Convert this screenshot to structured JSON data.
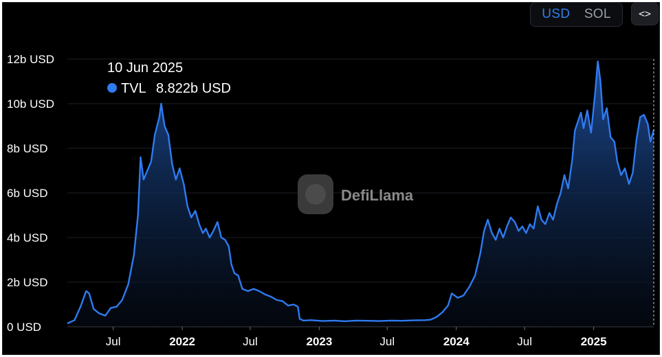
{
  "toolbar": {
    "usd_label": "USD",
    "sol_label": "SOL",
    "embed_label": "<>"
  },
  "watermark": {
    "text": "DefiLlama"
  },
  "tooltip": {
    "date": "10 Jun 2025",
    "series": "TVL",
    "value": "8.822b USD"
  },
  "colors": {
    "line": "#2f7bf0",
    "background": "#000000",
    "grid": "#1e2026",
    "tooltip_dot": "#2f7bf0"
  },
  "chart_data": {
    "type": "area",
    "y_tick_labels": [
      "0 USD",
      "2b USD",
      "4b USD",
      "6b USD",
      "8b USD",
      "10b USD",
      "12b USD"
    ],
    "y_ticks": [
      0,
      2,
      4,
      6,
      8,
      10,
      12
    ],
    "ylim": [
      0,
      12
    ],
    "y_unit": "billion USD",
    "x_ticks": [
      {
        "label": "Jul",
        "date": "2021-07-01",
        "bold": false
      },
      {
        "label": "2022",
        "date": "2022-01-01",
        "bold": true
      },
      {
        "label": "Jul",
        "date": "2022-07-01",
        "bold": false
      },
      {
        "label": "2023",
        "date": "2023-01-01",
        "bold": true
      },
      {
        "label": "Jul",
        "date": "2023-07-01",
        "bold": false
      },
      {
        "label": "2024",
        "date": "2024-01-01",
        "bold": true
      },
      {
        "label": "Jul",
        "date": "2024-07-01",
        "bold": false
      },
      {
        "label": "2025",
        "date": "2025-01-01",
        "bold": true
      }
    ],
    "xlim": [
      "2021-03-01",
      "2025-06-10"
    ],
    "grid": true,
    "series": [
      {
        "name": "TVL",
        "points": [
          [
            "2021-03-01",
            0.15
          ],
          [
            "2021-03-20",
            0.3
          ],
          [
            "2021-04-05",
            0.9
          ],
          [
            "2021-04-20",
            1.6
          ],
          [
            "2021-04-28",
            1.5
          ],
          [
            "2021-05-10",
            0.8
          ],
          [
            "2021-05-25",
            0.6
          ],
          [
            "2021-06-10",
            0.5
          ],
          [
            "2021-06-25",
            0.85
          ],
          [
            "2021-07-10",
            0.9
          ],
          [
            "2021-07-25",
            1.2
          ],
          [
            "2021-08-10",
            1.9
          ],
          [
            "2021-08-25",
            3.2
          ],
          [
            "2021-09-05",
            5.0
          ],
          [
            "2021-09-12",
            7.6
          ],
          [
            "2021-09-20",
            6.6
          ],
          [
            "2021-09-30",
            7.0
          ],
          [
            "2021-10-10",
            7.4
          ],
          [
            "2021-10-20",
            8.6
          ],
          [
            "2021-11-01",
            9.4
          ],
          [
            "2021-11-06",
            10.0
          ],
          [
            "2021-11-15",
            9.0
          ],
          [
            "2021-11-25",
            8.6
          ],
          [
            "2021-12-05",
            7.3
          ],
          [
            "2021-12-15",
            6.6
          ],
          [
            "2021-12-25",
            7.1
          ],
          [
            "2022-01-05",
            6.4
          ],
          [
            "2022-01-15",
            5.4
          ],
          [
            "2022-01-25",
            4.9
          ],
          [
            "2022-02-05",
            5.2
          ],
          [
            "2022-02-15",
            4.6
          ],
          [
            "2022-02-25",
            4.2
          ],
          [
            "2022-03-05",
            4.4
          ],
          [
            "2022-03-15",
            4.0
          ],
          [
            "2022-03-25",
            4.3
          ],
          [
            "2022-04-05",
            4.7
          ],
          [
            "2022-04-15",
            4.0
          ],
          [
            "2022-04-25",
            3.9
          ],
          [
            "2022-05-05",
            3.6
          ],
          [
            "2022-05-12",
            2.8
          ],
          [
            "2022-05-20",
            2.4
          ],
          [
            "2022-05-30",
            2.3
          ],
          [
            "2022-06-10",
            1.7
          ],
          [
            "2022-06-25",
            1.6
          ],
          [
            "2022-07-10",
            1.7
          ],
          [
            "2022-07-25",
            1.6
          ],
          [
            "2022-08-10",
            1.45
          ],
          [
            "2022-08-25",
            1.35
          ],
          [
            "2022-09-10",
            1.2
          ],
          [
            "2022-09-25",
            1.15
          ],
          [
            "2022-10-10",
            0.95
          ],
          [
            "2022-10-25",
            1.0
          ],
          [
            "2022-11-05",
            0.9
          ],
          [
            "2022-11-10",
            0.35
          ],
          [
            "2022-11-20",
            0.28
          ],
          [
            "2022-12-10",
            0.3
          ],
          [
            "2023-01-10",
            0.26
          ],
          [
            "2023-02-10",
            0.28
          ],
          [
            "2023-03-10",
            0.25
          ],
          [
            "2023-04-10",
            0.28
          ],
          [
            "2023-05-10",
            0.27
          ],
          [
            "2023-06-10",
            0.26
          ],
          [
            "2023-07-10",
            0.28
          ],
          [
            "2023-08-10",
            0.27
          ],
          [
            "2023-09-10",
            0.29
          ],
          [
            "2023-10-10",
            0.3
          ],
          [
            "2023-10-25",
            0.32
          ],
          [
            "2023-11-10",
            0.45
          ],
          [
            "2023-11-25",
            0.65
          ],
          [
            "2023-12-10",
            0.95
          ],
          [
            "2023-12-20",
            1.5
          ],
          [
            "2024-01-05",
            1.3
          ],
          [
            "2024-01-20",
            1.4
          ],
          [
            "2024-02-05",
            1.8
          ],
          [
            "2024-02-20",
            2.3
          ],
          [
            "2024-03-05",
            3.3
          ],
          [
            "2024-03-15",
            4.3
          ],
          [
            "2024-03-25",
            4.8
          ],
          [
            "2024-04-05",
            4.2
          ],
          [
            "2024-04-15",
            3.9
          ],
          [
            "2024-04-25",
            4.4
          ],
          [
            "2024-05-05",
            4.0
          ],
          [
            "2024-05-15",
            4.5
          ],
          [
            "2024-05-25",
            4.9
          ],
          [
            "2024-06-05",
            4.7
          ],
          [
            "2024-06-15",
            4.3
          ],
          [
            "2024-06-25",
            4.5
          ],
          [
            "2024-07-05",
            4.2
          ],
          [
            "2024-07-15",
            4.6
          ],
          [
            "2024-07-25",
            4.4
          ],
          [
            "2024-08-05",
            5.4
          ],
          [
            "2024-08-15",
            4.8
          ],
          [
            "2024-08-25",
            4.6
          ],
          [
            "2024-09-05",
            5.1
          ],
          [
            "2024-09-15",
            4.8
          ],
          [
            "2024-09-25",
            5.5
          ],
          [
            "2024-10-05",
            6.0
          ],
          [
            "2024-10-15",
            6.8
          ],
          [
            "2024-10-25",
            6.2
          ],
          [
            "2024-11-05",
            7.5
          ],
          [
            "2024-11-12",
            8.8
          ],
          [
            "2024-11-20",
            9.2
          ],
          [
            "2024-11-28",
            9.6
          ],
          [
            "2024-12-05",
            8.9
          ],
          [
            "2024-12-15",
            9.7
          ],
          [
            "2024-12-25",
            8.7
          ],
          [
            "2025-01-05",
            10.5
          ],
          [
            "2025-01-12",
            11.9
          ],
          [
            "2025-01-19",
            11.0
          ],
          [
            "2025-01-26",
            9.3
          ],
          [
            "2025-02-05",
            9.8
          ],
          [
            "2025-02-15",
            8.5
          ],
          [
            "2025-02-25",
            8.3
          ],
          [
            "2025-03-05",
            7.4
          ],
          [
            "2025-03-15",
            6.8
          ],
          [
            "2025-03-25",
            7.1
          ],
          [
            "2025-04-05",
            6.4
          ],
          [
            "2025-04-15",
            6.9
          ],
          [
            "2025-04-25",
            8.4
          ],
          [
            "2025-05-05",
            9.4
          ],
          [
            "2025-05-15",
            9.5
          ],
          [
            "2025-05-25",
            9.1
          ],
          [
            "2025-06-01",
            8.3
          ],
          [
            "2025-06-10",
            8.822
          ]
        ]
      }
    ]
  }
}
